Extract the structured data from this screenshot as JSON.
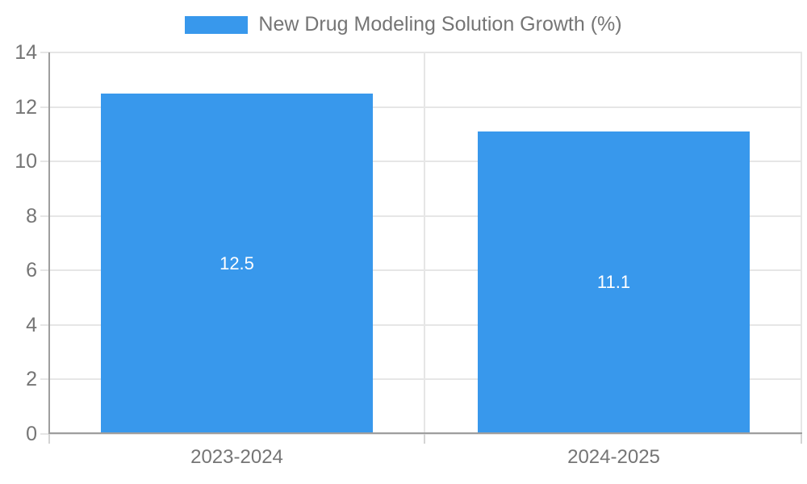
{
  "legend": {
    "label": "New Drug Modeling Solution Growth (%)"
  },
  "colors": {
    "bar": "#3898ec",
    "grid": "#e6e6e6",
    "axis": "#9e9e9e",
    "boundary_tick": "#d4d4d4",
    "tick_text": "#757575",
    "value_label_text": "#ffffff",
    "background": "#ffffff"
  },
  "chart_data": {
    "type": "bar",
    "title": "New Drug Modeling Solution Growth (%)",
    "categories": [
      "2023-2024",
      "2024-2025"
    ],
    "values": [
      12.5,
      11.1
    ],
    "value_labels": [
      "12.5",
      "11.1"
    ],
    "xlabel": "",
    "ylabel": "",
    "ylim": [
      0,
      14
    ],
    "yticks": [
      0,
      2,
      4,
      6,
      8,
      10,
      12,
      14
    ],
    "grid": true,
    "legend_position": "top",
    "bar_width_fraction": 0.72
  }
}
